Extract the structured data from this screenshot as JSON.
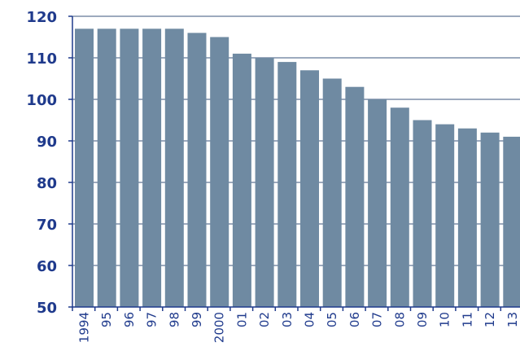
{
  "chart_data": {
    "type": "bar",
    "categories": [
      "1994",
      "95",
      "96",
      "97",
      "98",
      "99",
      "2000",
      "01",
      "02",
      "03",
      "04",
      "05",
      "06",
      "07",
      "08",
      "09",
      "10",
      "11",
      "12",
      "13"
    ],
    "values": [
      117,
      117,
      117,
      117,
      117,
      116,
      115,
      111,
      110,
      109,
      107,
      105,
      103,
      100,
      98,
      95,
      94,
      93,
      92,
      91
    ],
    "title": "",
    "xlabel": "",
    "ylabel": "",
    "ylim": [
      50,
      120
    ],
    "yticks": [
      50,
      60,
      70,
      80,
      90,
      100,
      110,
      120
    ],
    "grid": true,
    "legend": "none",
    "colors": {
      "bar": "#6f8aa2",
      "grid": "#7d8ea8",
      "axis": "#1f3a8c",
      "text": "#1f3a8c"
    }
  }
}
